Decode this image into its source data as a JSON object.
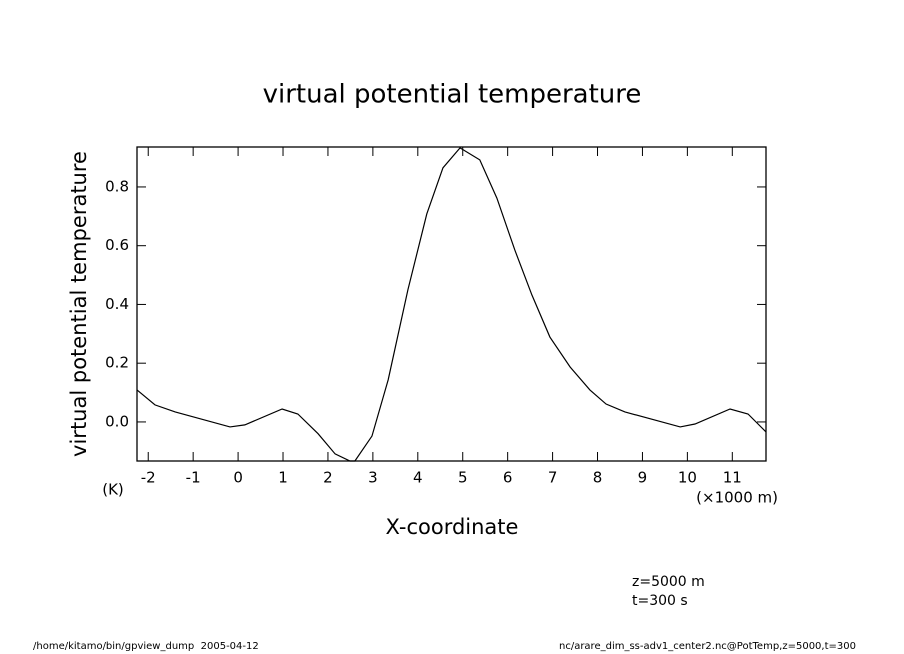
{
  "chart_data": {
    "type": "line",
    "title": "virtual potential temperature",
    "y_label": "virtual potential temperature",
    "y_units": "(K)",
    "x_label": "X-coordinate",
    "x_units": "(×1000 m)",
    "annotations": [
      "z=5000 m",
      "t=300 s"
    ],
    "footer_left": "/home/kitamo/bin/gpview_dump  2005-04-12",
    "footer_right": "nc/arare_dim_ss-adv1_center2.nc@PotTemp,z=5000,t=300",
    "x": [
      -2.25,
      -1.85,
      -1.4,
      -0.18,
      0.15,
      0.98,
      1.33,
      1.78,
      2.16,
      2.49,
      2.6,
      2.98,
      3.34,
      3.78,
      4.2,
      4.56,
      4.94,
      5.38,
      5.76,
      6.16,
      6.54,
      6.94,
      7.39,
      7.83,
      8.19,
      8.61,
      9.84,
      10.17,
      10.95,
      11.35,
      11.75
    ],
    "series": [
      {
        "name": "virtual potential temperature",
        "color": "#000000",
        "values": [
          0.109,
          0.058,
          0.034,
          -0.017,
          -0.01,
          0.044,
          0.027,
          -0.04,
          -0.109,
          -0.133,
          -0.133,
          -0.048,
          0.143,
          0.45,
          0.708,
          0.865,
          0.933,
          0.892,
          0.762,
          0.585,
          0.432,
          0.289,
          0.187,
          0.109,
          0.061,
          0.034,
          -0.017,
          -0.007,
          0.044,
          0.027,
          -0.034
        ]
      }
    ],
    "xlim": [
      -2.25,
      11.75
    ],
    "ylim": [
      -0.133,
      0.936
    ],
    "xticks": [
      -2,
      -1,
      0,
      1,
      2,
      3,
      4,
      5,
      6,
      7,
      8,
      9,
      10,
      11
    ],
    "yticks": [
      {
        "value": 0,
        "label": "0.0"
      },
      0.2,
      0.4,
      0.6,
      0.8
    ],
    "grid": false
  }
}
